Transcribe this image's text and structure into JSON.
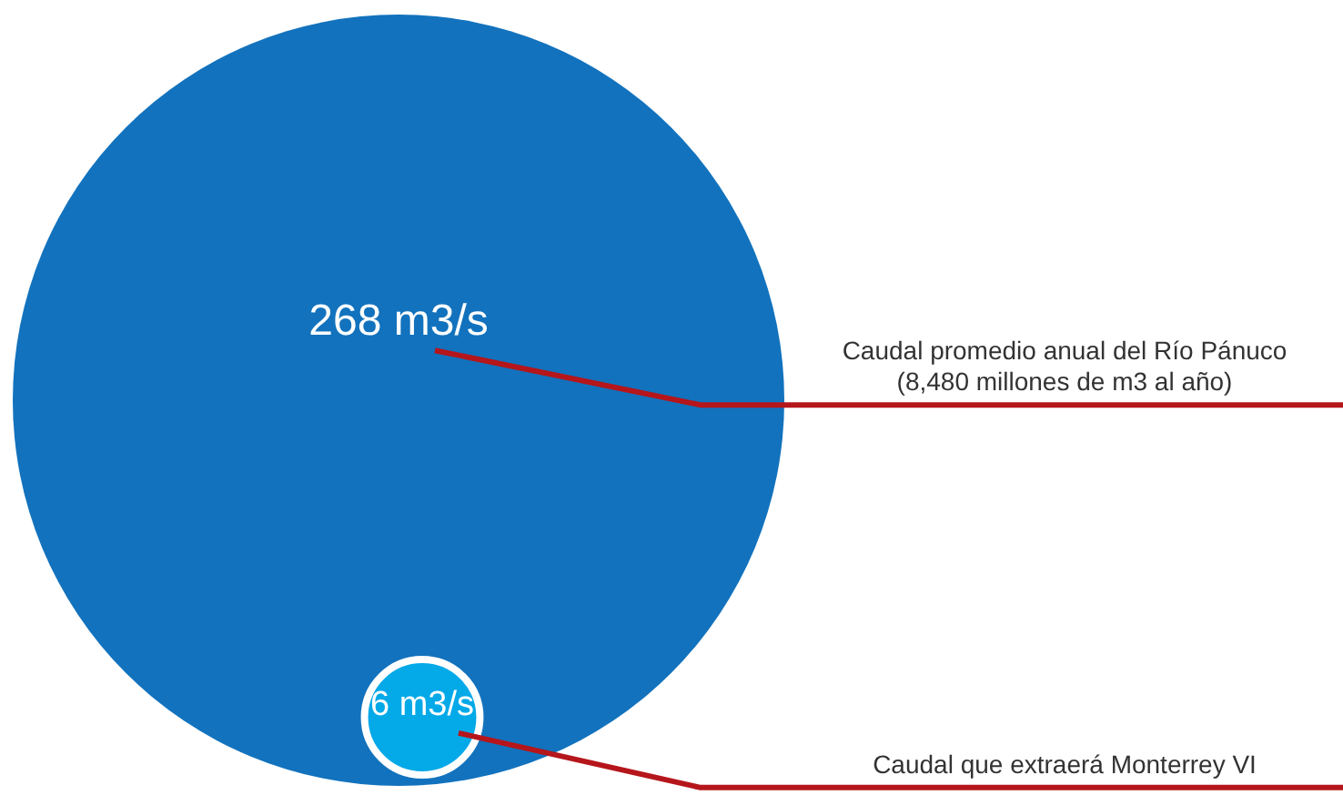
{
  "chart_data": {
    "type": "other",
    "categories": [
      "Caudal promedio anual del Río Pánuco",
      "Caudal que extraerá Monterrey VI"
    ],
    "values": [
      268,
      6
    ],
    "value_labels": [
      "268 m3/s",
      "6 m3/s"
    ],
    "colors": [
      "#1272bd",
      "#04a9e8"
    ],
    "annotations": [
      "(8,480 millones de m3 al año)"
    ]
  }
}
